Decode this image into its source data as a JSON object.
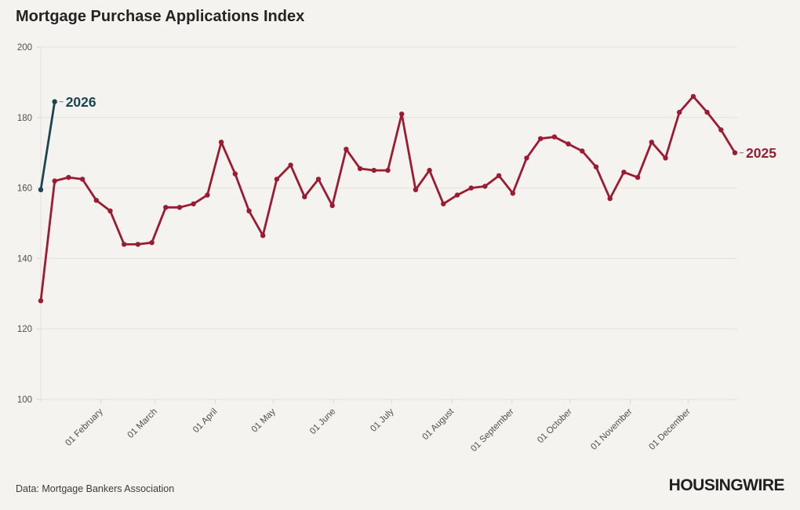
{
  "page": {
    "title": "Mortgage Purchase Applications Index",
    "source": "Data: Mortgage Bankers Association",
    "brand": "HOUSINGWIRE",
    "background": "#f5f3ef",
    "gridline_color": "#e5e2db",
    "axis_text_color": "#4f4f4f",
    "connector_color": "#8a8a8a"
  },
  "chart_data": {
    "type": "line",
    "title": "Mortgage Purchase Applications Index",
    "x_axis": {
      "tick_labels": [
        "01 February",
        "01 March",
        "01 April",
        "01 May",
        "01 June",
        "01 July",
        "01 August",
        "01 September",
        "01 October",
        "01 November",
        "01 December"
      ],
      "tick_day_of_year": [
        31,
        59,
        90,
        120,
        151,
        181,
        212,
        243,
        273,
        304,
        334
      ],
      "days_total": 358
    },
    "y_axis": {
      "ticks": [
        200,
        180,
        160,
        140,
        120,
        100
      ],
      "range": [
        100,
        200
      ],
      "grid": true
    },
    "series": [
      {
        "name": "2025",
        "color": "#9b1b32",
        "start_week_index": 0,
        "values": [
          128,
          162,
          163,
          162.5,
          156.5,
          153.5,
          144,
          144,
          144.5,
          154.5,
          154.5,
          155.5,
          158,
          173,
          164,
          153.5,
          146.5,
          162.5,
          166.5,
          157.5,
          162.5,
          155,
          171,
          165.5,
          165,
          165,
          181,
          159.5,
          165,
          155.5,
          158,
          160,
          160.5,
          163.5,
          158.5,
          168.5,
          174,
          174.5,
          172.5,
          170.5,
          166,
          157,
          164.5,
          163,
          173,
          168.5,
          181.5,
          186,
          181.5,
          176.5,
          170
        ]
      },
      {
        "name": "2026",
        "color": "#1b4450",
        "start_week_index": 0,
        "values": [
          159.5,
          184.5
        ]
      }
    ],
    "legend_position": "end-of-line-labels"
  }
}
